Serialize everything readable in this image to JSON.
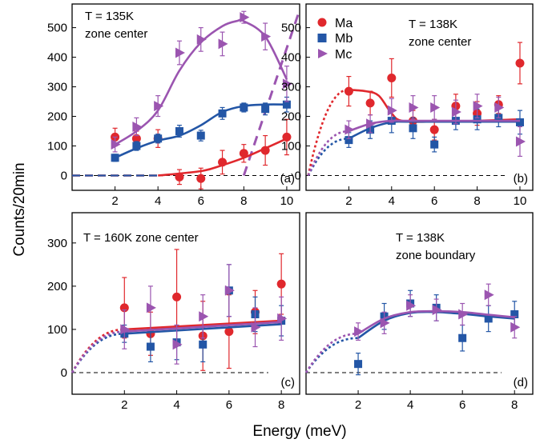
{
  "figure": {
    "ylabel": "Counts/20min",
    "xlabel": "Energy (meV)"
  },
  "colors": {
    "Ma": "#e0282d",
    "Mb": "#2356a6",
    "Mc": "#9b55b0"
  },
  "legend": {
    "placement": "top-left of panel (b)",
    "entries": [
      {
        "name": "Ma",
        "marker": "circle",
        "color": "#e0282d"
      },
      {
        "name": "Mb",
        "marker": "square",
        "color": "#2356a6"
      },
      {
        "name": "Mc",
        "marker": "triangle-right",
        "color": "#9b55b0"
      }
    ]
  },
  "chart_data": [
    {
      "panel": "(a)",
      "type": "scatter",
      "annotation": [
        "T = 135K",
        "zone center"
      ],
      "xlim": [
        0,
        10.6
      ],
      "ylim": [
        -50,
        580
      ],
      "xticks": [
        2,
        4,
        6,
        8,
        10
      ],
      "yticks": [
        0,
        100,
        200,
        300,
        400,
        500
      ],
      "series": [
        {
          "name": "Ma",
          "points": [
            [
              2,
              130,
              30
            ],
            [
              3,
              125,
              25
            ],
            [
              4,
              125,
              30
            ],
            [
              5,
              -5,
              25
            ],
            [
              6,
              -10,
              35
            ],
            [
              7,
              45,
              40
            ],
            [
              8,
              75,
              30
            ],
            [
              9,
              85,
              50
            ],
            [
              10,
              130,
              60
            ]
          ],
          "fit": [
            [
              0,
              0
            ],
            [
              4,
              0
            ],
            [
              6,
              15
            ],
            [
              7,
              35
            ],
            [
              8,
              60
            ],
            [
              9,
              92
            ],
            [
              10,
              125
            ]
          ]
        },
        {
          "name": "Mb",
          "points": [
            [
              2,
              60,
              12
            ],
            [
              3,
              100,
              15
            ],
            [
              4,
              125,
              15
            ],
            [
              5,
              150,
              20
            ],
            [
              6,
              135,
              18
            ],
            [
              7,
              210,
              20
            ],
            [
              8,
              230,
              15
            ],
            [
              9,
              225,
              20
            ],
            [
              10,
              240,
              25
            ]
          ],
          "fit": [
            [
              2,
              60
            ],
            [
              3,
              92
            ],
            [
              4,
              118
            ],
            [
              5,
              135
            ],
            [
              6,
              170
            ],
            [
              7,
              215
            ],
            [
              8,
              235
            ],
            [
              9,
              240
            ],
            [
              10,
              240
            ]
          ]
        },
        {
          "name": "Mc",
          "points": [
            [
              2,
              105,
              25
            ],
            [
              3,
              165,
              30
            ],
            [
              4,
              235,
              35
            ],
            [
              5,
              415,
              40
            ],
            [
              6,
              460,
              40
            ],
            [
              7,
              445,
              40
            ],
            [
              8,
              535,
              20
            ],
            [
              9,
              470,
              45
            ],
            [
              10,
              310,
              60
            ]
          ],
          "fit": [
            [
              2,
              105
            ],
            [
              3,
              150
            ],
            [
              4,
              220
            ],
            [
              5,
              355
            ],
            [
              6,
              450
            ],
            [
              7,
              505
            ],
            [
              7.7,
              523
            ],
            [
              8,
              522
            ],
            [
              9,
              470
            ],
            [
              10,
              325
            ]
          ]
        }
      ]
    },
    {
      "panel": "(b)",
      "type": "scatter",
      "annotation": [
        "T = 138K",
        "zone center"
      ],
      "xlim": [
        0,
        10.6
      ],
      "ylim": [
        -50,
        580
      ],
      "xticks": [
        2,
        4,
        6,
        8,
        10
      ],
      "yticks": [
        0,
        100,
        200,
        300,
        400,
        500
      ],
      "series": [
        {
          "name": "Ma",
          "points": [
            [
              2,
              285,
              50
            ],
            [
              3,
              245,
              40
            ],
            [
              4,
              330,
              65
            ],
            [
              5,
              185,
              35
            ],
            [
              6,
              155,
              35
            ],
            [
              7,
              235,
              40
            ],
            [
              8,
              210,
              40
            ],
            [
              9,
              240,
              30
            ],
            [
              10,
              380,
              70
            ]
          ],
          "fit": [
            [
              2,
              290
            ],
            [
              2.8,
              285
            ],
            [
              3.4,
              270
            ],
            [
              4,
              210
            ],
            [
              4.5,
              185
            ],
            [
              6,
              182
            ],
            [
              8,
              185
            ],
            [
              10,
              190
            ]
          ]
        },
        {
          "name": "Mb",
          "points": [
            [
              2,
              120,
              25
            ],
            [
              3,
              155,
              30
            ],
            [
              4,
              185,
              40
            ],
            [
              5,
              160,
              35
            ],
            [
              6,
              105,
              25
            ],
            [
              7,
              185,
              30
            ],
            [
              8,
              190,
              35
            ],
            [
              9,
              195,
              30
            ],
            [
              10,
              180,
              40
            ]
          ],
          "fit": [
            [
              2,
              125
            ],
            [
              3,
              160
            ],
            [
              4,
              180
            ],
            [
              5,
              182
            ],
            [
              10,
              182
            ]
          ]
        },
        {
          "name": "Mc",
          "points": [
            [
              2,
              155,
              30
            ],
            [
              3,
              175,
              30
            ],
            [
              4,
              220,
              40
            ],
            [
              5,
              230,
              40
            ],
            [
              6,
              230,
              40
            ],
            [
              7,
              215,
              40
            ],
            [
              8,
              235,
              40
            ],
            [
              9,
              230,
              35
            ],
            [
              10,
              115,
              50
            ]
          ],
          "fit": [
            [
              2,
              150
            ],
            [
              3,
              175
            ],
            [
              4,
              185
            ],
            [
              5,
              185
            ],
            [
              10,
              185
            ]
          ]
        }
      ]
    },
    {
      "panel": "(c)",
      "type": "scatter",
      "annotation": [
        "T = 160K  zone center"
      ],
      "xlim": [
        0,
        8.7
      ],
      "ylim": [
        -50,
        370
      ],
      "xticks": [
        2,
        4,
        6,
        8
      ],
      "yticks": [
        0,
        100,
        200,
        300
      ],
      "series": [
        {
          "name": "Ma",
          "points": [
            [
              2,
              150,
              70
            ],
            [
              3,
              90,
              50
            ],
            [
              4,
              175,
              110
            ],
            [
              5,
              85,
              80
            ],
            [
              6,
              95,
              85
            ],
            [
              7,
              140,
              50
            ],
            [
              8,
              205,
              70
            ]
          ],
          "fit": [
            [
              2,
              100
            ],
            [
              8,
              120
            ]
          ]
        },
        {
          "name": "Mb",
          "points": [
            [
              2,
              90,
              20
            ],
            [
              3,
              60,
              35
            ],
            [
              4,
              70,
              40
            ],
            [
              5,
              65,
              40
            ],
            [
              6,
              190,
              60
            ],
            [
              7,
              135,
              40
            ],
            [
              8,
              120,
              35
            ]
          ],
          "fit": [
            [
              2,
              90
            ],
            [
              8,
              112
            ]
          ]
        },
        {
          "name": "Mc",
          "points": [
            [
              2,
              100,
              45
            ],
            [
              3,
              150,
              50
            ],
            [
              4,
              65,
              45
            ],
            [
              5,
              130,
              50
            ],
            [
              6,
              190,
              60
            ],
            [
              7,
              105,
              45
            ],
            [
              8,
              125,
              50
            ]
          ],
          "fit": [
            [
              2,
              95
            ],
            [
              8,
              117
            ]
          ]
        }
      ]
    },
    {
      "panel": "(d)",
      "type": "scatter",
      "annotation": [
        "T = 138K",
        "zone boundary"
      ],
      "xlim": [
        0,
        8.7
      ],
      "ylim": [
        -50,
        370
      ],
      "xticks": [
        2,
        4,
        6,
        8
      ],
      "series": [
        {
          "name": "Mb",
          "points": [
            [
              2,
              20,
              25
            ],
            [
              3,
              130,
              30
            ],
            [
              4,
              160,
              30
            ],
            [
              5,
              150,
              30
            ],
            [
              6,
              80,
              30
            ],
            [
              7,
              125,
              30
            ],
            [
              8,
              135,
              30
            ]
          ],
          "fit": [
            [
              2,
              80
            ],
            [
              3,
              120
            ],
            [
              4,
              138
            ],
            [
              5,
              140
            ],
            [
              6,
              136
            ],
            [
              7,
              130
            ],
            [
              8,
              125
            ]
          ]
        },
        {
          "name": "Mc",
          "points": [
            [
              2,
              95,
              20
            ],
            [
              3,
              115,
              25
            ],
            [
              4,
              155,
              25
            ],
            [
              5,
              145,
              25
            ],
            [
              6,
              135,
              25
            ],
            [
              7,
              180,
              25
            ],
            [
              8,
              105,
              25
            ]
          ],
          "fit": [
            [
              2,
              90
            ],
            [
              3,
              125
            ],
            [
              4,
              140
            ],
            [
              5,
              142
            ],
            [
              6,
              140
            ],
            [
              7,
              134
            ],
            [
              8,
              128
            ]
          ]
        }
      ]
    }
  ]
}
